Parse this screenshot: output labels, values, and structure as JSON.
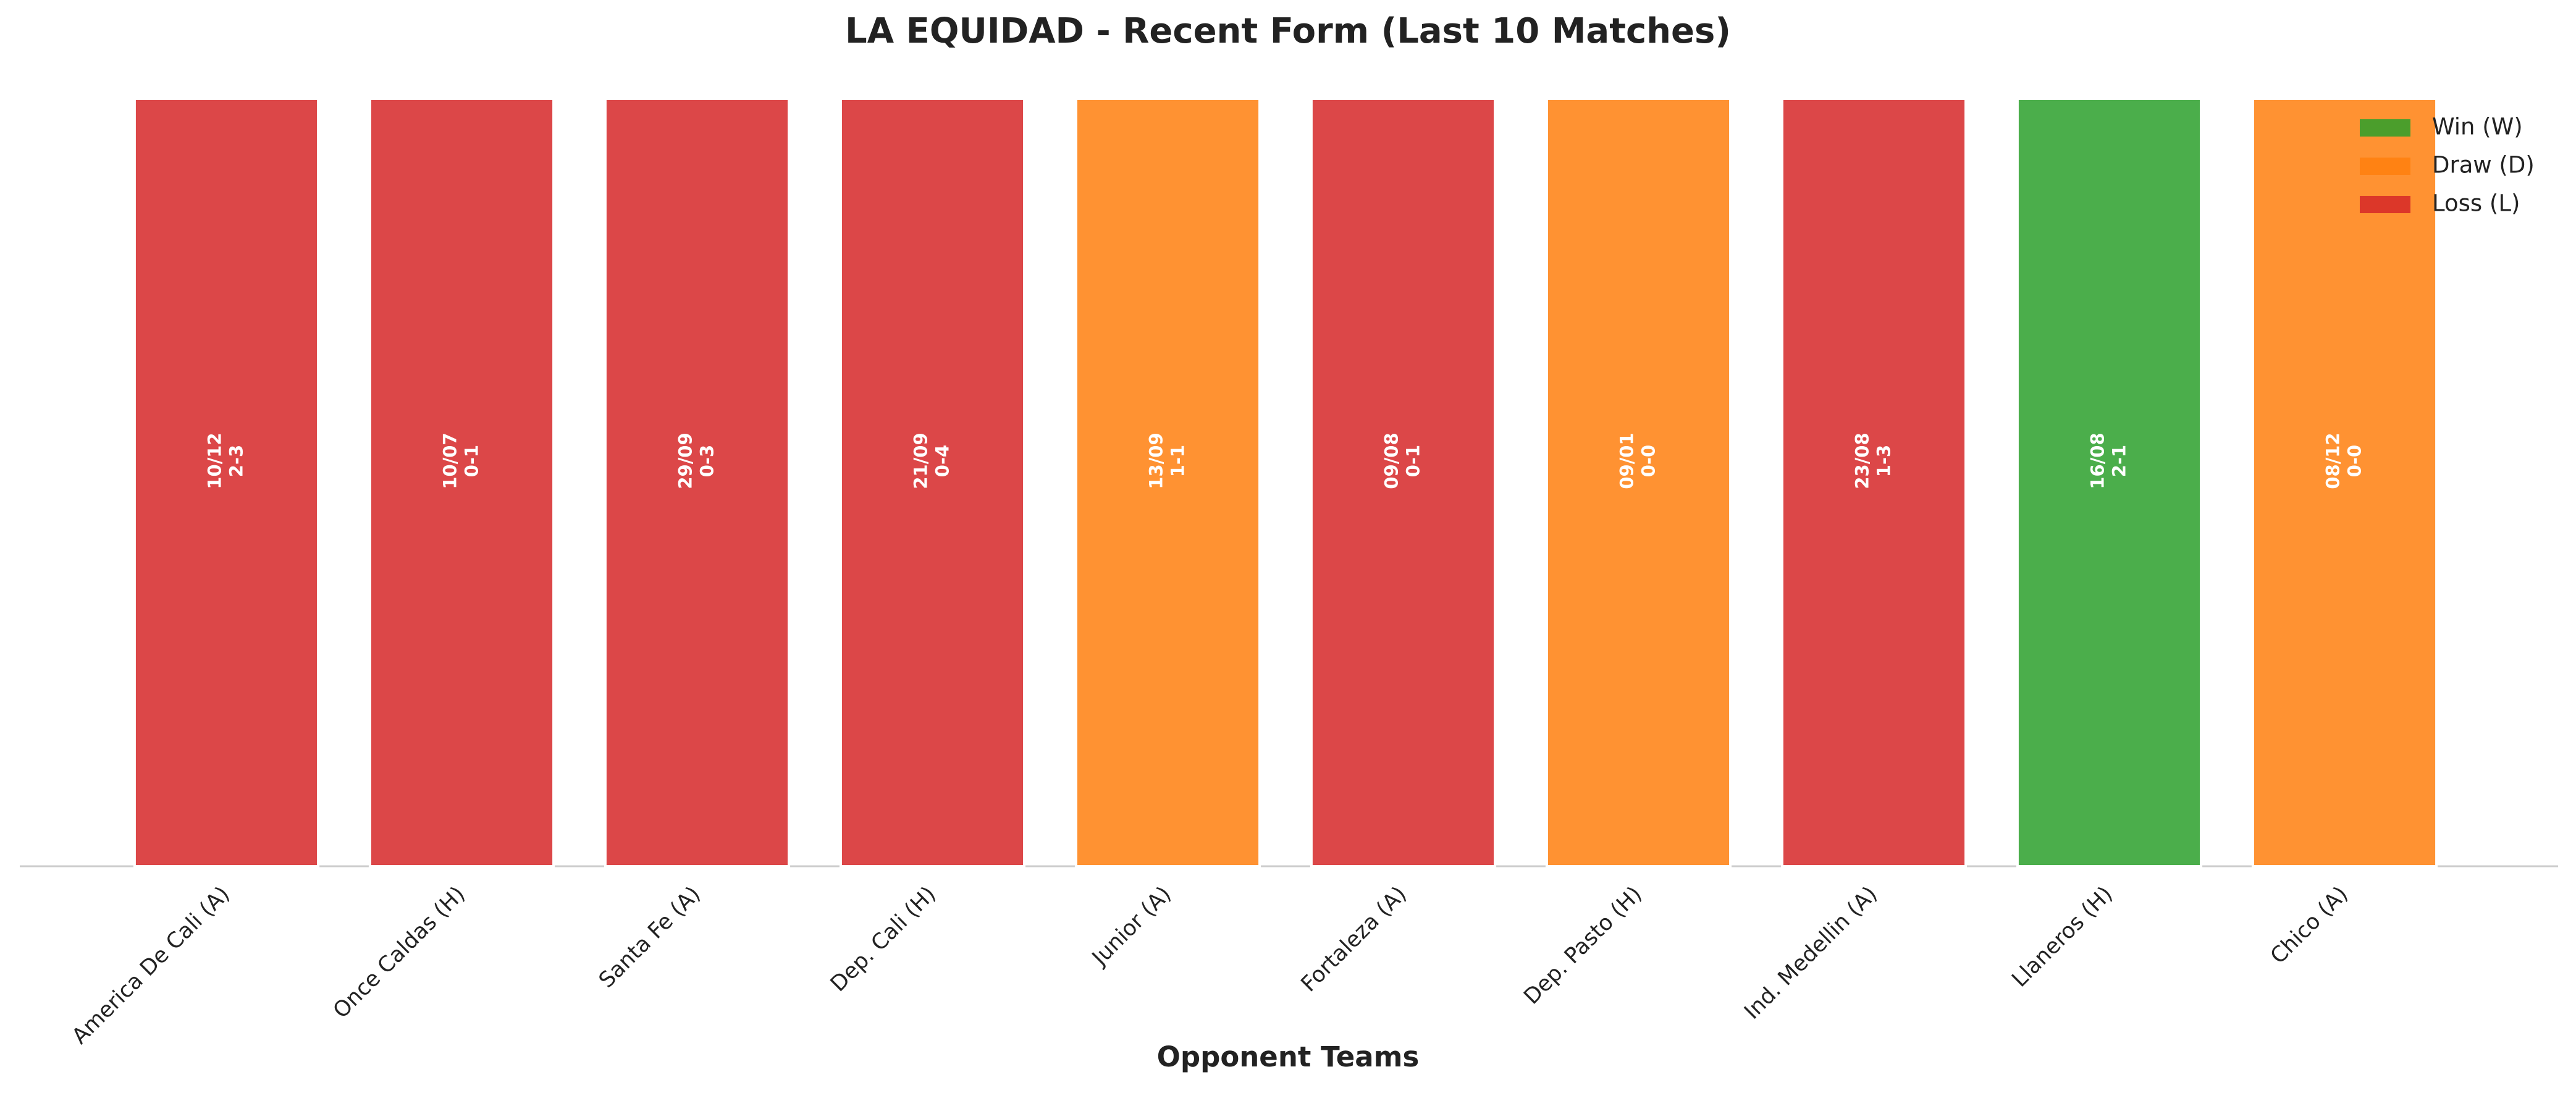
{
  "chart_data": {
    "type": "bar",
    "title": "LA EQUIDAD - Recent Form (Last 10 Matches)",
    "x_label": "Opponent Teams",
    "categories": [
      "America De Cali (A)",
      "Once Caldas (H)",
      "Santa Fe (A)",
      "Dep. Cali (H)",
      "Junior (A)",
      "Fortaleza (A)",
      "Dep. Pasto (H)",
      "Ind. Medellin (A)",
      "Llaneros (H)",
      "Chico (A)"
    ],
    "values": [
      1,
      1,
      1,
      1,
      1,
      1,
      1,
      1,
      1,
      1
    ],
    "results": [
      "L",
      "L",
      "L",
      "L",
      "D",
      "L",
      "D",
      "L",
      "W",
      "D"
    ],
    "dates": [
      "10/12",
      "10/07",
      "29/09",
      "21/09",
      "13/09",
      "09/08",
      "09/01",
      "23/08",
      "16/08",
      "08/12"
    ],
    "scores": [
      "2-3",
      "0-1",
      "0-3",
      "0-4",
      "1-1",
      "0-1",
      "0-0",
      "1-3",
      "2-1",
      "0-0"
    ],
    "ylim": [
      0,
      1
    ],
    "legend_position": "upper right",
    "legend": [
      {
        "key": "W",
        "label": "Win (W)",
        "color": "#2ca02c"
      },
      {
        "key": "D",
        "label": "Draw (D)",
        "color": "#ff7f0e"
      },
      {
        "key": "L",
        "label": "Loss (L)",
        "color": "#d62728"
      }
    ]
  }
}
